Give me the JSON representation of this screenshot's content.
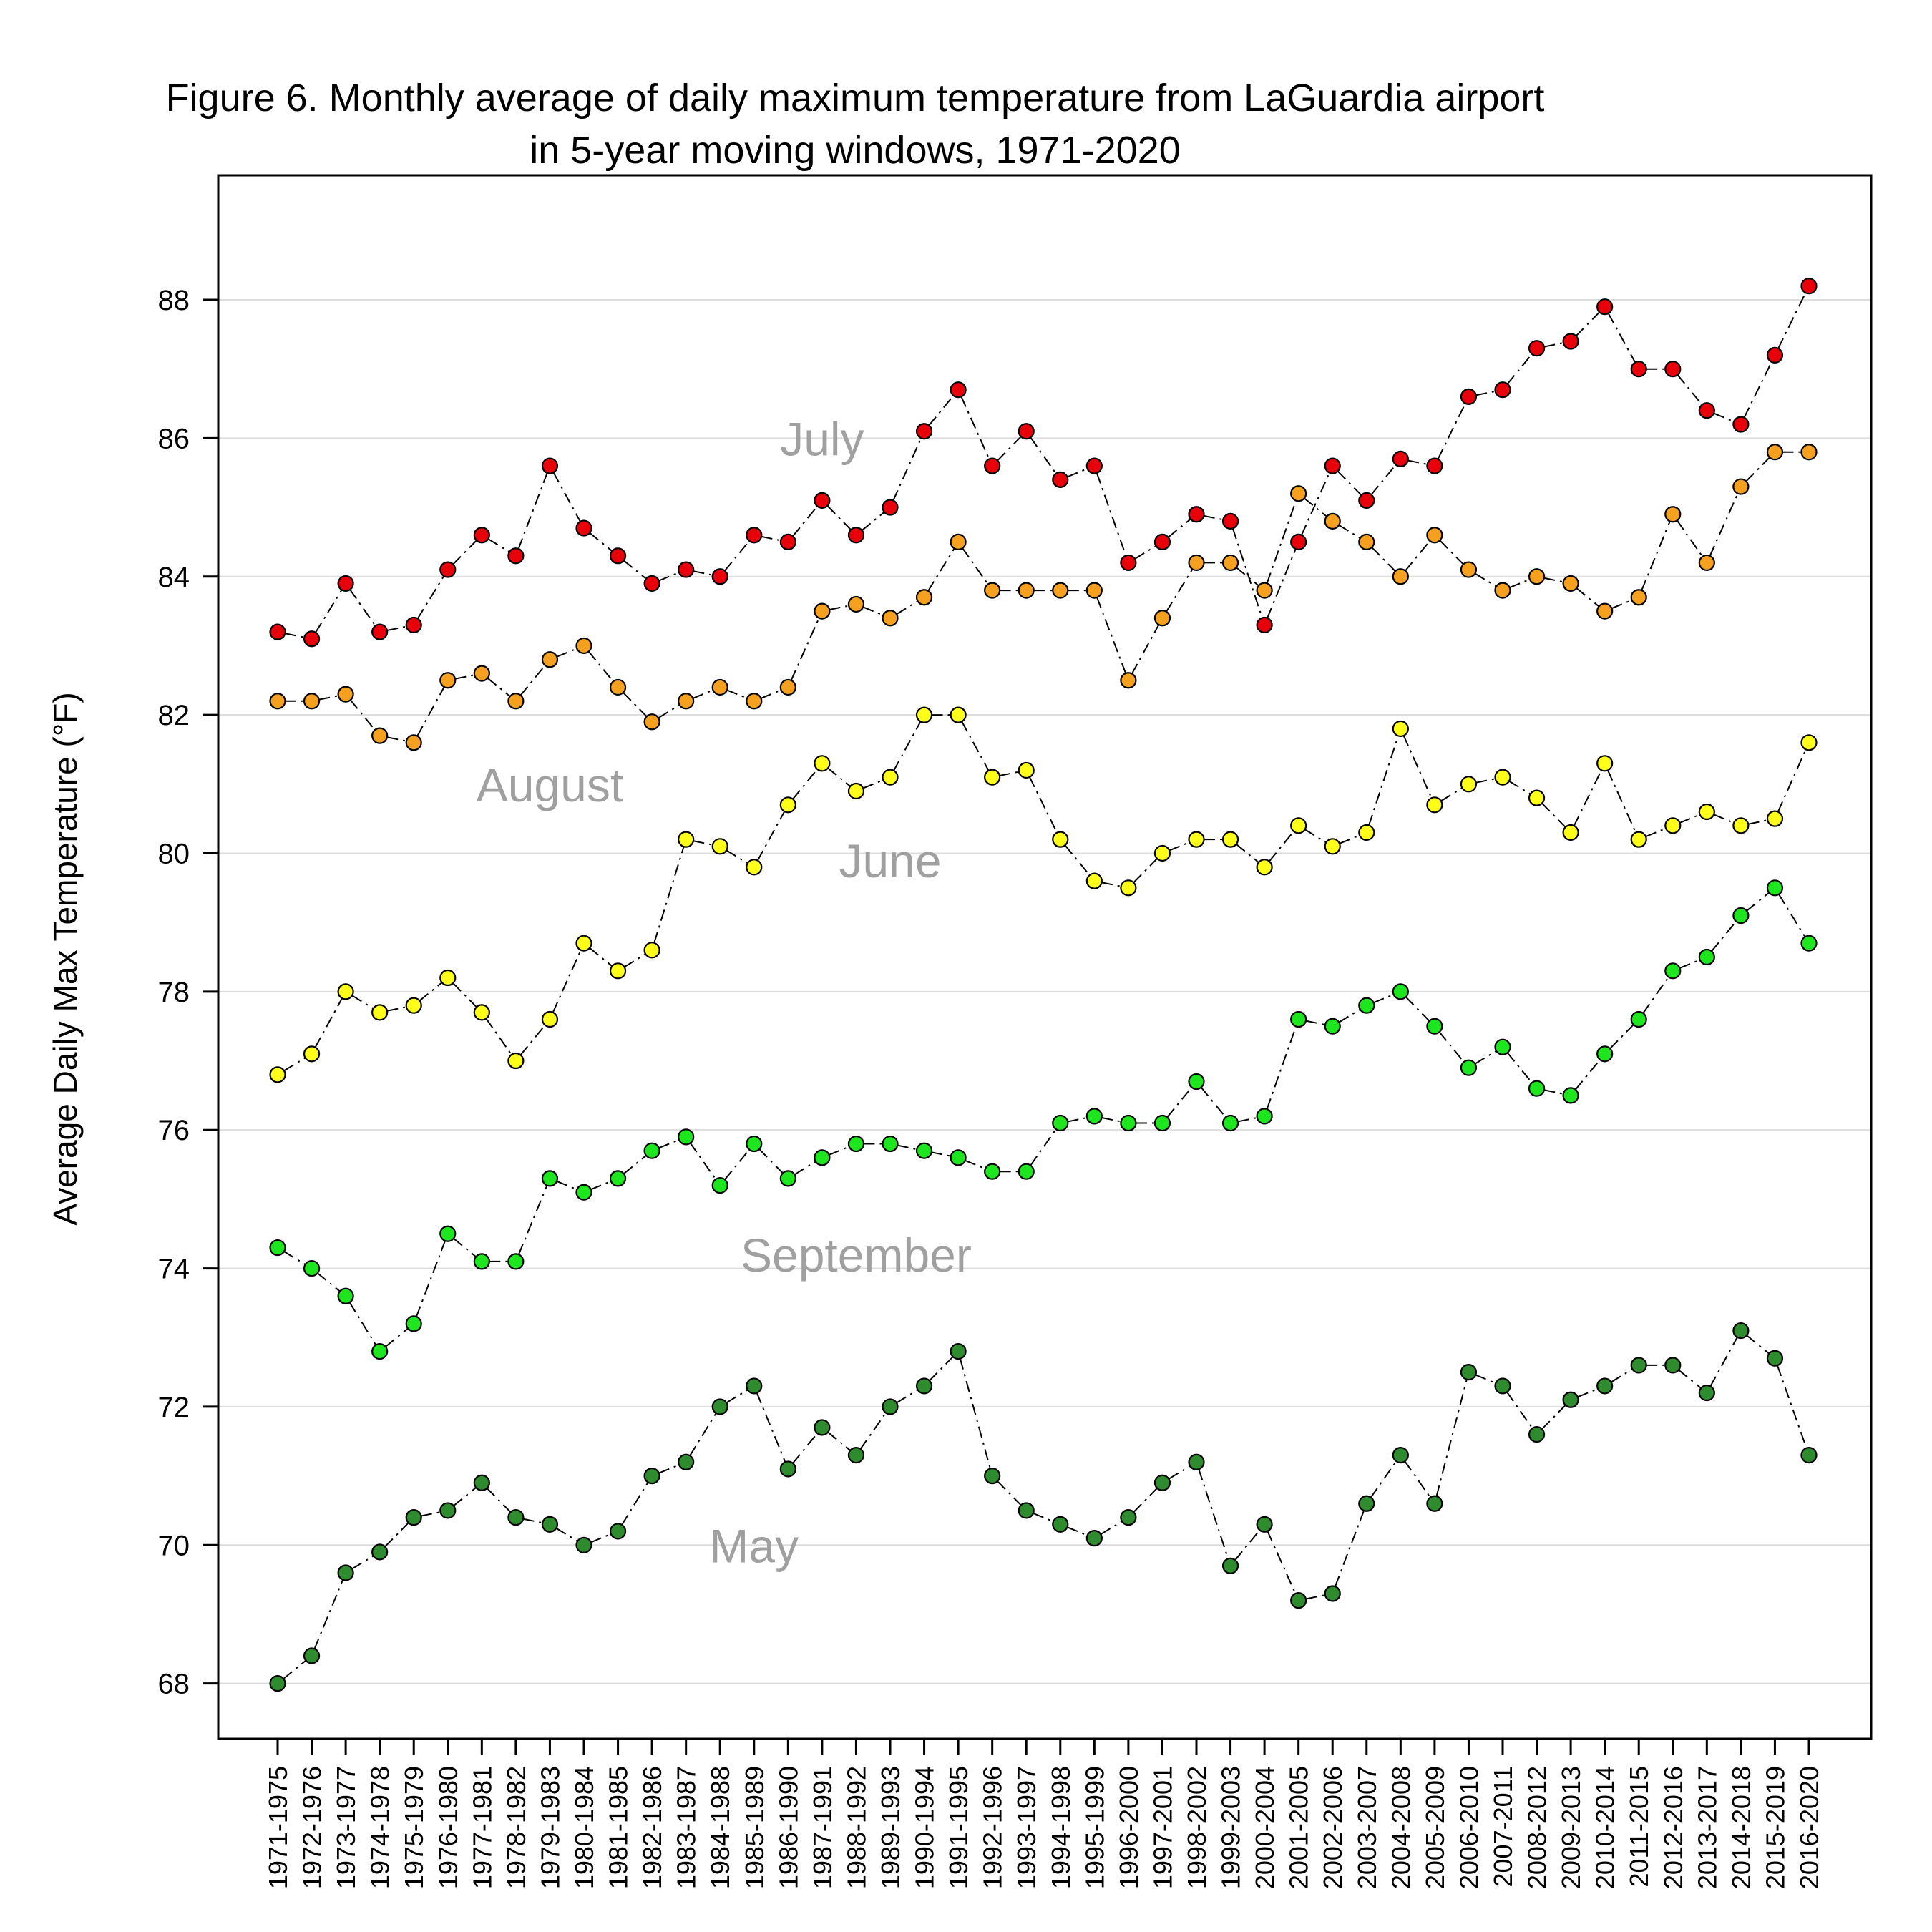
{
  "chart_data": {
    "type": "line",
    "title": [
      "Figure 6. Monthly average of daily maximum temperature from LaGuardia airport",
      "in 5-year moving windows, 1971-2020"
    ],
    "xlabel": "",
    "ylabel": "Average Daily Max Temperature (°F)",
    "ylim": [
      67.2,
      89.8
    ],
    "yticks": [
      68,
      70,
      72,
      74,
      76,
      78,
      80,
      82,
      84,
      86,
      88
    ],
    "ytick_labels": [
      "68",
      "70",
      "72",
      "74",
      "76",
      "78",
      "80",
      "82",
      "84",
      "86",
      "88"
    ],
    "grid": "horizontal",
    "categories": [
      "1971-1975",
      "1972-1976",
      "1973-1977",
      "1974-1978",
      "1975-1979",
      "1976-1980",
      "1977-1981",
      "1978-1982",
      "1979-1983",
      "1980-1984",
      "1981-1985",
      "1982-1986",
      "1983-1987",
      "1984-1988",
      "1985-1989",
      "1986-1990",
      "1987-1991",
      "1988-1992",
      "1989-1993",
      "1990-1994",
      "1991-1995",
      "1992-1996",
      "1993-1997",
      "1994-1998",
      "1995-1999",
      "1996-2000",
      "1997-2001",
      "1998-2002",
      "1999-2003",
      "2000-2004",
      "2001-2005",
      "2002-2006",
      "2003-2007",
      "2004-2008",
      "2005-2009",
      "2006-2010",
      "2007-2011",
      "2008-2012",
      "2009-2013",
      "2010-2014",
      "2011-2015",
      "2012-2016",
      "2013-2017",
      "2014-2018",
      "2015-2019",
      "2016-2020"
    ],
    "series": [
      {
        "name": "July",
        "color": "#e8000b",
        "label_at": [
          16,
          86.0
        ],
        "values": [
          83.2,
          83.1,
          83.9,
          83.2,
          83.3,
          84.1,
          84.6,
          84.3,
          85.6,
          84.7,
          84.3,
          83.9,
          84.1,
          84.0,
          84.6,
          84.5,
          85.1,
          84.6,
          85.0,
          86.1,
          86.7,
          85.6,
          86.1,
          85.4,
          85.6,
          84.2,
          84.5,
          84.9,
          84.8,
          83.3,
          84.5,
          85.6,
          85.1,
          85.7,
          85.6,
          86.6,
          86.7,
          87.3,
          87.4,
          87.9,
          87.0,
          87.0,
          86.4,
          86.2,
          87.2,
          88.2
        ]
      },
      {
        "name": "August",
        "color": "#f5a01e",
        "label_at": [
          8,
          81.0
        ],
        "values": [
          82.2,
          82.2,
          82.3,
          81.7,
          81.6,
          82.5,
          82.6,
          82.2,
          82.8,
          83.0,
          82.4,
          81.9,
          82.2,
          82.4,
          82.2,
          82.4,
          83.5,
          83.6,
          83.4,
          83.7,
          84.5,
          83.8,
          83.8,
          83.8,
          83.8,
          82.5,
          83.4,
          84.2,
          84.2,
          83.8,
          85.2,
          84.8,
          84.5,
          84.0,
          84.6,
          84.1,
          83.8,
          84.0,
          83.9,
          83.5,
          83.7,
          84.9,
          84.2,
          85.3,
          85.8,
          85.8
        ]
      },
      {
        "name": "June",
        "color": "#ffff1a",
        "label_at": [
          18,
          79.9
        ],
        "values": [
          76.8,
          77.1,
          78.0,
          77.7,
          77.8,
          78.2,
          77.7,
          77.0,
          77.6,
          78.7,
          78.3,
          78.6,
          80.2,
          80.1,
          79.8,
          80.7,
          81.3,
          80.9,
          81.1,
          82.0,
          82.0,
          81.1,
          81.2,
          80.2,
          79.6,
          79.5,
          80.0,
          80.2,
          80.2,
          79.8,
          80.4,
          80.1,
          80.3,
          81.8,
          80.7,
          81.0,
          81.1,
          80.8,
          80.3,
          81.3,
          80.2,
          80.4,
          80.6,
          80.4,
          80.5,
          81.6
        ]
      },
      {
        "name": "September",
        "color": "#1ee61e",
        "label_at": [
          17,
          74.2
        ],
        "values": [
          74.3,
          74.0,
          73.6,
          72.8,
          73.2,
          74.5,
          74.1,
          74.1,
          75.3,
          75.1,
          75.3,
          75.7,
          75.9,
          75.2,
          75.8,
          75.3,
          75.6,
          75.8,
          75.8,
          75.7,
          75.6,
          75.4,
          75.4,
          76.1,
          76.2,
          76.1,
          76.1,
          76.7,
          76.1,
          76.2,
          77.6,
          77.5,
          77.8,
          78.0,
          77.5,
          76.9,
          77.2,
          76.6,
          76.5,
          77.1,
          77.6,
          78.3,
          78.5,
          79.1,
          79.5,
          78.7
        ]
      },
      {
        "name": "May",
        "color": "#2e8b2e",
        "label_at": [
          14,
          70.0
        ],
        "values": [
          68.0,
          68.4,
          69.6,
          69.9,
          70.4,
          70.5,
          70.9,
          70.4,
          70.3,
          70.0,
          70.2,
          71.0,
          71.2,
          72.0,
          72.3,
          71.1,
          71.7,
          71.3,
          72.0,
          72.3,
          72.8,
          71.0,
          70.5,
          70.3,
          70.1,
          70.4,
          70.9,
          71.2,
          69.7,
          70.3,
          69.2,
          69.3,
          70.6,
          71.3,
          70.6,
          72.5,
          72.3,
          71.6,
          72.1,
          72.3,
          72.6,
          72.6,
          72.2,
          73.1,
          72.7,
          71.3
        ]
      }
    ]
  }
}
